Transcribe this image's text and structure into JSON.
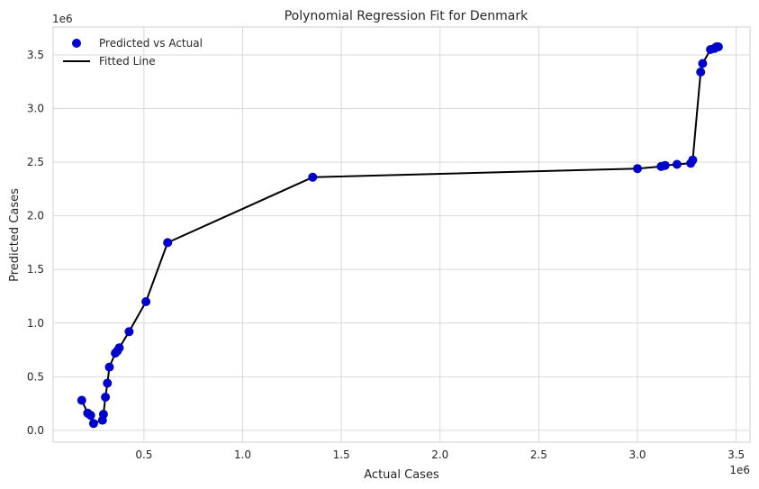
{
  "chart_data": {
    "type": "scatter",
    "title": "Polynomial Regression Fit for Denmark",
    "xlabel": "Actual Cases",
    "ylabel": "Predicted Cases",
    "x_offset_label": "1e6",
    "y_offset_label": "1e6",
    "xlim": [
      0.04,
      3.57
    ],
    "ylim": [
      -0.11,
      3.76
    ],
    "xticks": [
      0.5,
      1.0,
      1.5,
      2.0,
      2.5,
      3.0,
      3.5
    ],
    "xtick_labels": [
      "0.5",
      "1.0",
      "1.5",
      "2.0",
      "2.5",
      "3.0",
      "3.5"
    ],
    "yticks": [
      0.0,
      0.5,
      1.0,
      1.5,
      2.0,
      2.5,
      3.0,
      3.5
    ],
    "ytick_labels": [
      "0.0",
      "0.5",
      "1.0",
      "1.5",
      "2.0",
      "2.5",
      "3.0",
      "3.5"
    ],
    "grid": true,
    "legend_position": "top-left",
    "colors": {
      "points": "#0000cc",
      "line": "#000000",
      "grid": "#d9d9d9",
      "frame": "#cfcfcf"
    },
    "series": [
      {
        "name": "Predicted vs Actual",
        "kind": "scatter",
        "x": [
          0.185,
          0.215,
          0.23,
          0.245,
          0.29,
          0.295,
          0.305,
          0.315,
          0.325,
          0.355,
          0.365,
          0.375,
          0.425,
          0.51,
          0.62,
          1.355,
          3.0,
          3.12,
          3.14,
          3.2,
          3.27,
          3.28,
          3.32,
          3.33,
          3.37,
          3.39,
          3.4,
          3.41
        ],
        "y": [
          0.28,
          0.16,
          0.14,
          0.065,
          0.095,
          0.15,
          0.31,
          0.44,
          0.59,
          0.72,
          0.74,
          0.77,
          0.92,
          1.2,
          1.75,
          2.36,
          2.44,
          2.46,
          2.47,
          2.48,
          2.49,
          2.52,
          3.34,
          3.42,
          3.55,
          3.56,
          3.575,
          3.575
        ]
      },
      {
        "name": "Fitted Line",
        "kind": "line",
        "x": [
          0.185,
          0.215,
          0.23,
          0.245,
          0.29,
          0.295,
          0.305,
          0.315,
          0.325,
          0.355,
          0.365,
          0.375,
          0.425,
          0.51,
          0.62,
          1.355,
          3.0,
          3.12,
          3.14,
          3.2,
          3.27,
          3.28,
          3.32,
          3.33,
          3.37,
          3.39,
          3.4,
          3.41
        ],
        "y": [
          0.28,
          0.16,
          0.14,
          0.065,
          0.095,
          0.15,
          0.31,
          0.44,
          0.59,
          0.72,
          0.74,
          0.77,
          0.92,
          1.2,
          1.75,
          2.36,
          2.44,
          2.46,
          2.47,
          2.48,
          2.49,
          2.52,
          3.34,
          3.42,
          3.55,
          3.56,
          3.575,
          3.575
        ]
      }
    ]
  }
}
